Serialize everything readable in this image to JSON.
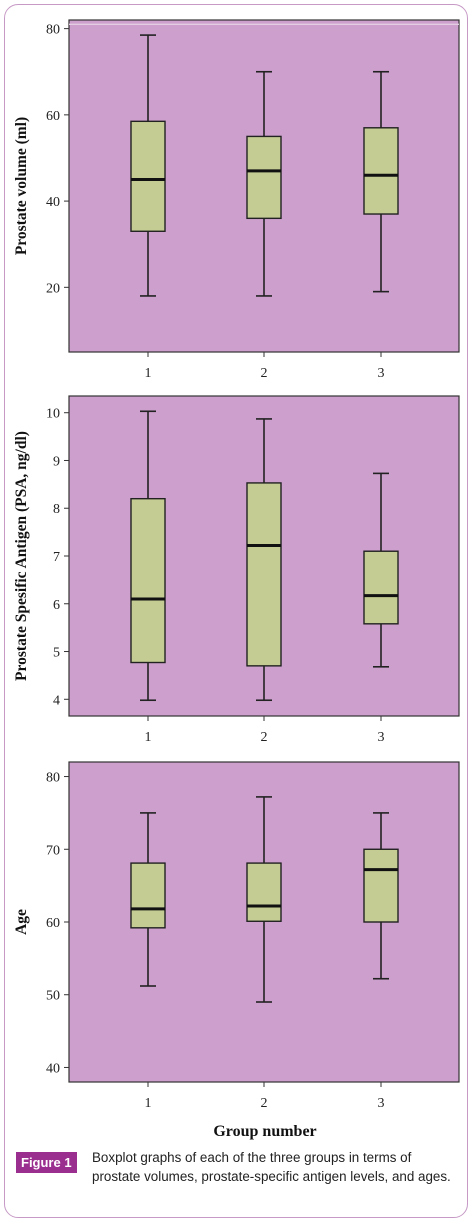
{
  "chart_data": [
    {
      "type": "boxplot",
      "ylabel": "Prostate volume (ml)",
      "ylim": [
        5,
        82
      ],
      "yticks": [
        20,
        40,
        60,
        80
      ],
      "categories": [
        "1",
        "2",
        "3"
      ],
      "boxes": [
        {
          "group": "1",
          "min": 18,
          "q1": 33,
          "median": 45,
          "q3": 58.5,
          "max": 78.5
        },
        {
          "group": "2",
          "min": 18,
          "q1": 36,
          "median": 47,
          "q3": 55,
          "max": 70
        },
        {
          "group": "3",
          "min": 19,
          "q1": 37,
          "median": 46,
          "q3": 57,
          "max": 70
        }
      ],
      "background": "#cc9fcc",
      "box_fill": "#c4cc93",
      "gridline_at": 81
    },
    {
      "type": "boxplot",
      "ylabel": "Prostate Spesific Antigen (PSA, ng/dl)",
      "ylim": [
        3.65,
        10.35
      ],
      "yticks": [
        4,
        5,
        6,
        7,
        8,
        9,
        10
      ],
      "categories": [
        "1",
        "2",
        "3"
      ],
      "boxes": [
        {
          "group": "1",
          "min": 3.98,
          "q1": 4.77,
          "median": 6.1,
          "q3": 8.2,
          "max": 10.03
        },
        {
          "group": "2",
          "min": 3.98,
          "q1": 4.7,
          "median": 7.22,
          "q3": 8.53,
          "max": 9.87
        },
        {
          "group": "3",
          "min": 4.68,
          "q1": 5.58,
          "median": 6.17,
          "q3": 7.1,
          "max": 8.73
        }
      ],
      "background": "#cc9fcc",
      "box_fill": "#c4cc93"
    },
    {
      "type": "boxplot",
      "ylabel": "Age",
      "ylim": [
        38,
        82
      ],
      "yticks": [
        40,
        50,
        60,
        70,
        80
      ],
      "categories": [
        "1",
        "2",
        "3"
      ],
      "xlabel": "Group number",
      "boxes": [
        {
          "group": "1",
          "min": 51.2,
          "q1": 59.2,
          "median": 61.8,
          "q3": 68.1,
          "max": 75
        },
        {
          "group": "2",
          "min": 49,
          "q1": 60.1,
          "median": 62.2,
          "q3": 68.1,
          "max": 77.2
        },
        {
          "group": "3",
          "min": 52.2,
          "q1": 60,
          "median": 67.2,
          "q3": 70,
          "max": 75
        }
      ],
      "background": "#cc9fcc",
      "box_fill": "#c4cc93"
    }
  ],
  "caption": {
    "label": "Figure 1",
    "text": "Boxplot graphs of each of the three groups in terms of prostate volumes, prostate-specific antigen levels, and ages."
  }
}
